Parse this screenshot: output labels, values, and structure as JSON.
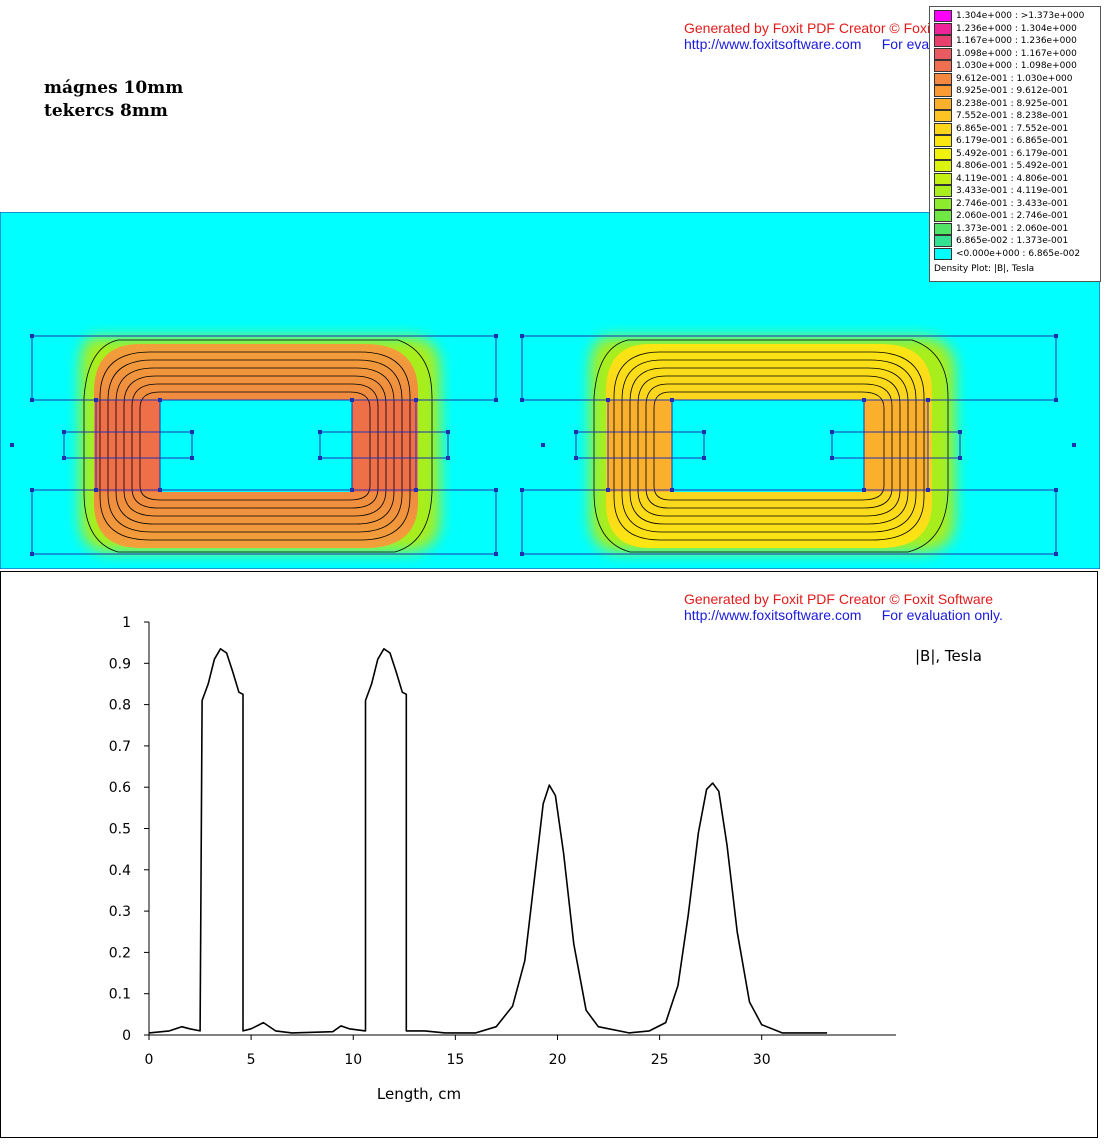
{
  "annotation": {
    "line1": "mágnes 10mm",
    "line2": "tekercs 8mm"
  },
  "watermark_top": {
    "line1": "Generated by Foxit PDF Creator © Foxit Software",
    "url": "http://www.foxitsoftware.com",
    "eval": "For evaluation only."
  },
  "watermark_chart": {
    "line1": "Generated by Foxit PDF Creator © Foxit Software",
    "url": "http://www.foxitsoftware.com",
    "eval": "For evaluation only."
  },
  "legend": {
    "title": "Density Plot: |B|, Tesla",
    "rows": [
      {
        "label": "1.304e+000 : >1.373e+000",
        "color": "#ff00ff"
      },
      {
        "label": "1.236e+000 : 1.304e+000",
        "color": "#f0239a"
      },
      {
        "label": "1.167e+000 : 1.236e+000",
        "color": "#e8406e"
      },
      {
        "label": "1.098e+000 : 1.167e+000",
        "color": "#ea5a63"
      },
      {
        "label": "1.030e+000 : 1.098e+000",
        "color": "#ee7050"
      },
      {
        "label": "9.612e-001 : 1.030e+000",
        "color": "#f58840"
      },
      {
        "label": "8.925e-001 : 9.612e-001",
        "color": "#f99a35"
      },
      {
        "label": "8.238e-001 : 8.925e-001",
        "color": "#fbb02d"
      },
      {
        "label": "7.552e-001 : 8.238e-001",
        "color": "#fdc423"
      },
      {
        "label": "6.865e-001 : 7.552e-001",
        "color": "#fdd51a"
      },
      {
        "label": "6.179e-001 : 6.865e-001",
        "color": "#fbe612"
      },
      {
        "label": "5.492e-001 : 6.179e-001",
        "color": "#f1f20c"
      },
      {
        "label": "4.806e-001 : 5.492e-001",
        "color": "#dcf30e"
      },
      {
        "label": "4.119e-001 : 4.806e-001",
        "color": "#c4f113"
      },
      {
        "label": "3.433e-001 : 4.119e-001",
        "color": "#a9ee1d"
      },
      {
        "label": "2.746e-001 : 3.433e-001",
        "color": "#8ceb2c"
      },
      {
        "label": "2.060e-001 : 2.746e-001",
        "color": "#6fe745"
      },
      {
        "label": "1.373e-001 : 2.060e-001",
        "color": "#52e466"
      },
      {
        "label": "6.865e-002 : 1.373e-001",
        "color": "#34e092"
      },
      {
        "label": "<0.000e+000 : 6.865e-002",
        "color": "#00ffff"
      }
    ]
  },
  "colors": {
    "field_background": "#00ffff",
    "boundary_lines": "#2030b0",
    "contour_lines": "#000000"
  },
  "chart_data": {
    "type": "line",
    "title": "",
    "series_label": "|B|, Tesla",
    "xlabel": "Length, cm",
    "ylabel": "",
    "xlim": [
      0,
      33
    ],
    "ylim": [
      0,
      1
    ],
    "x_ticks": [
      "0",
      "5",
      "10",
      "15",
      "20",
      "25",
      "30"
    ],
    "y_ticks": [
      "0",
      "0.1",
      "0.2",
      "0.3",
      "0.4",
      "0.5",
      "0.6",
      "0.7",
      "0.8",
      "0.9",
      "1"
    ],
    "series": [
      {
        "name": "",
        "points": [
          [
            0,
            0.005
          ],
          [
            1.0,
            0.01
          ],
          [
            1.6,
            0.02
          ],
          [
            2.0,
            0.015
          ],
          [
            2.5,
            0.01
          ],
          [
            2.6,
            0.81
          ],
          [
            2.9,
            0.85
          ],
          [
            3.2,
            0.91
          ],
          [
            3.5,
            0.935
          ],
          [
            3.8,
            0.925
          ],
          [
            4.1,
            0.88
          ],
          [
            4.4,
            0.83
          ],
          [
            4.6,
            0.825
          ],
          [
            4.6,
            0.01
          ],
          [
            5.0,
            0.015
          ],
          [
            5.6,
            0.03
          ],
          [
            6.2,
            0.01
          ],
          [
            7.0,
            0.005
          ],
          [
            9.0,
            0.008
          ],
          [
            9.4,
            0.022
          ],
          [
            9.8,
            0.015
          ],
          [
            10.6,
            0.01
          ],
          [
            10.6,
            0.81
          ],
          [
            10.9,
            0.85
          ],
          [
            11.2,
            0.91
          ],
          [
            11.5,
            0.935
          ],
          [
            11.8,
            0.925
          ],
          [
            12.1,
            0.88
          ],
          [
            12.4,
            0.83
          ],
          [
            12.6,
            0.825
          ],
          [
            12.6,
            0.01
          ],
          [
            13.5,
            0.01
          ],
          [
            14.5,
            0.005
          ],
          [
            16.0,
            0.005
          ],
          [
            17.0,
            0.02
          ],
          [
            17.8,
            0.07
          ],
          [
            18.4,
            0.18
          ],
          [
            18.9,
            0.39
          ],
          [
            19.3,
            0.56
          ],
          [
            19.6,
            0.605
          ],
          [
            19.9,
            0.58
          ],
          [
            20.3,
            0.44
          ],
          [
            20.8,
            0.22
          ],
          [
            21.4,
            0.06
          ],
          [
            22.0,
            0.02
          ],
          [
            23.5,
            0.005
          ],
          [
            24.5,
            0.01
          ],
          [
            25.3,
            0.03
          ],
          [
            25.9,
            0.12
          ],
          [
            26.4,
            0.29
          ],
          [
            26.9,
            0.49
          ],
          [
            27.3,
            0.595
          ],
          [
            27.6,
            0.61
          ],
          [
            27.9,
            0.59
          ],
          [
            28.3,
            0.46
          ],
          [
            28.8,
            0.25
          ],
          [
            29.4,
            0.08
          ],
          [
            30.0,
            0.025
          ],
          [
            31.0,
            0.005
          ],
          [
            33.2,
            0.005
          ]
        ]
      }
    ]
  }
}
